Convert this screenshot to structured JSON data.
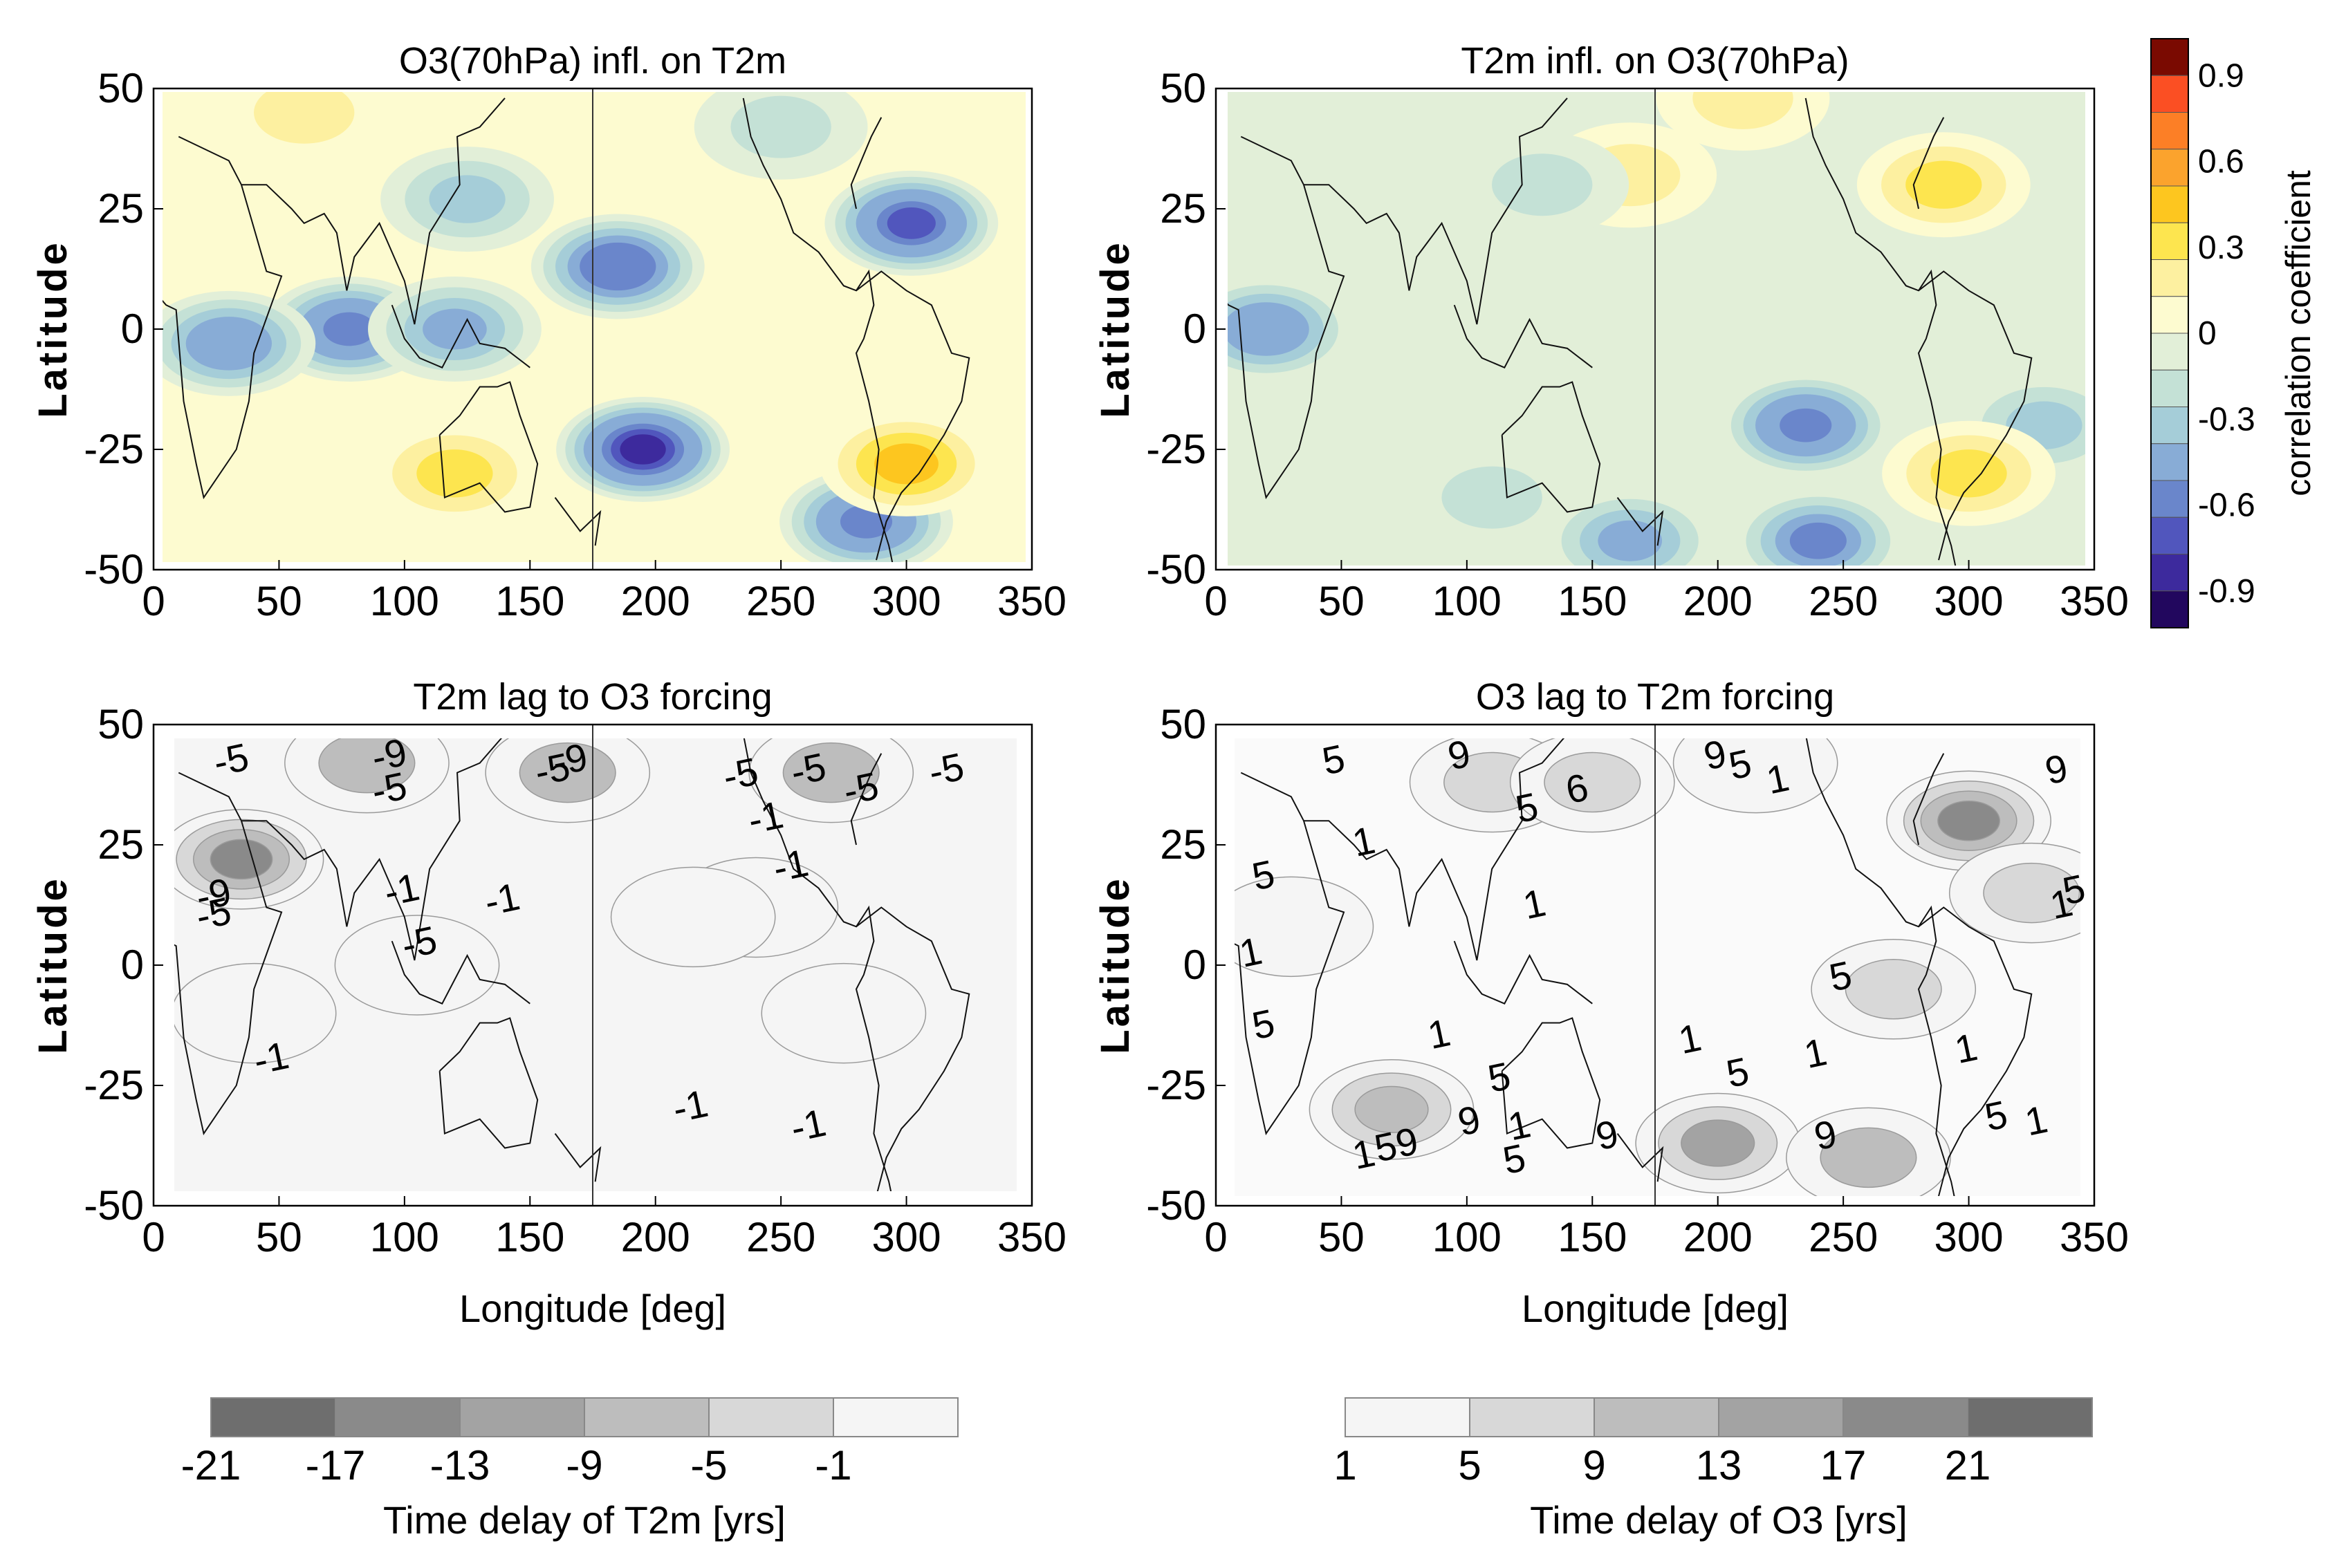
{
  "figure_kind": "four-panel lagged correlation / time-delay maps",
  "chart_data": [
    {
      "panel": "top-left",
      "type": "heatmap",
      "title": "O3(70hPa) infl. on T2m",
      "xlabel": "",
      "ylabel": "Latitude",
      "xlim": [
        0,
        350
      ],
      "ylim": [
        -50,
        50
      ],
      "xticks": [
        "0",
        "50",
        "100",
        "150",
        "200",
        "250",
        "300",
        "350"
      ],
      "yticks": [
        "50",
        "25",
        "0",
        "-25",
        "-50"
      ],
      "reference_line_lon": 175,
      "field": "correlation coefficient",
      "features": [
        {
          "lon": 195,
          "lat": -25,
          "value": -0.75
        },
        {
          "lon": 185,
          "lat": 13,
          "value": -0.6
        },
        {
          "lon": 302,
          "lat": 22,
          "value": -0.65
        },
        {
          "lon": 78,
          "lat": 0,
          "value": -0.55
        },
        {
          "lon": 30,
          "lat": -3,
          "value": -0.45
        },
        {
          "lon": 120,
          "lat": 0,
          "value": -0.4
        },
        {
          "lon": 284,
          "lat": -40,
          "value": -0.55
        },
        {
          "lon": 125,
          "lat": 27,
          "value": -0.3
        },
        {
          "lon": 120,
          "lat": -30,
          "value": 0.3
        },
        {
          "lon": 300,
          "lat": -28,
          "value": 0.4
        },
        {
          "lon": 60,
          "lat": 45,
          "value": 0.2
        },
        {
          "lon": 250,
          "lat": 42,
          "value": -0.2
        }
      ]
    },
    {
      "panel": "top-right",
      "type": "heatmap",
      "title": "T2m infl. on O3(70hPa)",
      "xlabel": "",
      "ylabel": "Latitude",
      "xlim": [
        0,
        350
      ],
      "ylim": [
        -50,
        50
      ],
      "xticks": [
        "0",
        "50",
        "100",
        "150",
        "200",
        "250",
        "300",
        "350"
      ],
      "yticks": [
        "50",
        "25",
        "0",
        "-25",
        "-50"
      ],
      "reference_line_lon": 175,
      "field": "correlation coefficient",
      "features": [
        {
          "lon": 235,
          "lat": -20,
          "value": -0.55
        },
        {
          "lon": 20,
          "lat": 0,
          "value": -0.45
        },
        {
          "lon": 240,
          "lat": -44,
          "value": -0.5
        },
        {
          "lon": 165,
          "lat": -44,
          "value": -0.4
        },
        {
          "lon": 330,
          "lat": -20,
          "value": -0.3
        },
        {
          "lon": 110,
          "lat": -35,
          "value": -0.2
        },
        {
          "lon": 300,
          "lat": -30,
          "value": 0.3
        },
        {
          "lon": 290,
          "lat": 30,
          "value": 0.25
        },
        {
          "lon": 165,
          "lat": 32,
          "value": 0.2
        },
        {
          "lon": 210,
          "lat": 48,
          "value": 0.2
        },
        {
          "lon": 130,
          "lat": 30,
          "value": -0.2
        }
      ]
    },
    {
      "panel": "bottom-left",
      "type": "heatmap",
      "title": "T2m lag to O3 forcing",
      "xlabel": "Longitude [deg]",
      "ylabel": "Latitude",
      "xlim": [
        0,
        350
      ],
      "ylim": [
        -50,
        50
      ],
      "xticks": [
        "0",
        "50",
        "100",
        "150",
        "200",
        "250",
        "300",
        "350"
      ],
      "yticks": [
        "50",
        "25",
        "0",
        "-25",
        "-50"
      ],
      "reference_line_lon": 175,
      "field": "Time delay of T2m [yrs]",
      "features": [
        {
          "lon": 35,
          "lat": 22,
          "value": -17
        },
        {
          "lon": 85,
          "lat": 42,
          "value": -9
        },
        {
          "lon": 165,
          "lat": 40,
          "value": -9
        },
        {
          "lon": 270,
          "lat": 40,
          "value": -9
        },
        {
          "lon": 240,
          "lat": 12,
          "value": -5
        },
        {
          "lon": 275,
          "lat": -10,
          "value": -5
        },
        {
          "lon": 105,
          "lat": 0,
          "value": -5
        },
        {
          "lon": 40,
          "lat": -10,
          "value": -5
        },
        {
          "lon": 215,
          "lat": 10,
          "value": -3
        }
      ],
      "contour_labels": [
        {
          "text": "-5",
          "lon": 32,
          "lat": 40
        },
        {
          "text": "-9",
          "lon": 95,
          "lat": 41
        },
        {
          "text": "-5",
          "lon": 95,
          "lat": 34
        },
        {
          "text": "-5",
          "lon": 160,
          "lat": 38
        },
        {
          "text": "-9",
          "lon": 167,
          "lat": 40
        },
        {
          "text": "-5",
          "lon": 235,
          "lat": 37
        },
        {
          "text": "-5",
          "lon": 262,
          "lat": 38
        },
        {
          "text": "-5",
          "lon": 283,
          "lat": 34
        },
        {
          "text": "-5",
          "lon": 317,
          "lat": 38
        },
        {
          "text": "-1",
          "lon": 245,
          "lat": 28
        },
        {
          "text": "-1",
          "lon": 255,
          "lat": 18
        },
        {
          "text": "-9",
          "lon": 25,
          "lat": 12
        },
        {
          "text": "-5",
          "lon": 25,
          "lat": 8
        },
        {
          "text": "-1",
          "lon": 100,
          "lat": 13
        },
        {
          "text": "-1",
          "lon": 140,
          "lat": 11
        },
        {
          "text": "-5",
          "lon": 107,
          "lat": 2
        },
        {
          "text": "-1",
          "lon": 48,
          "lat": -22
        },
        {
          "text": "-1",
          "lon": 215,
          "lat": -32
        },
        {
          "text": "-1",
          "lon": 262,
          "lat": -36
        }
      ]
    },
    {
      "panel": "bottom-right",
      "type": "heatmap",
      "title": "O3 lag to T2m forcing",
      "xlabel": "Longitude [deg]",
      "ylabel": "Latitude",
      "xlim": [
        0,
        350
      ],
      "ylim": [
        -50,
        50
      ],
      "xticks": [
        "0",
        "50",
        "100",
        "150",
        "200",
        "250",
        "300",
        "350"
      ],
      "yticks": [
        "50",
        "25",
        "0",
        "-25",
        "-50"
      ],
      "reference_line_lon": 175,
      "field": "Time delay of O3 [yrs]",
      "features": [
        {
          "lon": 300,
          "lat": 30,
          "value": 17
        },
        {
          "lon": 200,
          "lat": -37,
          "value": 13
        },
        {
          "lon": 70,
          "lat": -30,
          "value": 11
        },
        {
          "lon": 260,
          "lat": -40,
          "value": 9
        },
        {
          "lon": 110,
          "lat": 38,
          "value": 7
        },
        {
          "lon": 150,
          "lat": 38,
          "value": 8
        },
        {
          "lon": 30,
          "lat": 8,
          "value": 5
        },
        {
          "lon": 270,
          "lat": -5,
          "value": 6
        },
        {
          "lon": 325,
          "lat": 15,
          "value": 6
        },
        {
          "lon": 215,
          "lat": 42,
          "value": 5
        }
      ],
      "contour_labels": [
        {
          "text": "5",
          "lon": 48,
          "lat": 40
        },
        {
          "text": "9",
          "lon": 98,
          "lat": 41
        },
        {
          "text": "5",
          "lon": 125,
          "lat": 30
        },
        {
          "text": "6",
          "lon": 145,
          "lat": 34
        },
        {
          "text": "9",
          "lon": 200,
          "lat": 41
        },
        {
          "text": "5",
          "lon": 210,
          "lat": 39
        },
        {
          "text": "1",
          "lon": 225,
          "lat": 36
        },
        {
          "text": "9",
          "lon": 336,
          "lat": 38
        },
        {
          "text": "1",
          "lon": 60,
          "lat": 23
        },
        {
          "text": "1",
          "lon": 128,
          "lat": 10
        },
        {
          "text": "5",
          "lon": 20,
          "lat": 16
        },
        {
          "text": "1",
          "lon": 15,
          "lat": 0
        },
        {
          "text": "5",
          "lon": 20,
          "lat": -15
        },
        {
          "text": "5",
          "lon": 250,
          "lat": -5
        },
        {
          "text": "1",
          "lon": 90,
          "lat": -17
        },
        {
          "text": "5",
          "lon": 114,
          "lat": -26
        },
        {
          "text": "1",
          "lon": 190,
          "lat": -18
        },
        {
          "text": "5",
          "lon": 209,
          "lat": -25
        },
        {
          "text": "1",
          "lon": 240,
          "lat": -21
        },
        {
          "text": "1",
          "lon": 300,
          "lat": -20
        },
        {
          "text": "9",
          "lon": 102,
          "lat": -35
        },
        {
          "text": "1",
          "lon": 122,
          "lat": -36
        },
        {
          "text": "9",
          "lon": 157,
          "lat": -38
        },
        {
          "text": "5",
          "lon": 120,
          "lat": -43
        },
        {
          "text": "1",
          "lon": 60,
          "lat": -42
        },
        {
          "text": "59",
          "lon": 73,
          "lat": -40
        },
        {
          "text": "9",
          "lon": 244,
          "lat": -38
        },
        {
          "text": "5",
          "lon": 312,
          "lat": -34
        },
        {
          "text": "1",
          "lon": 328,
          "lat": -35
        },
        {
          "text": "1",
          "lon": 338,
          "lat": 10
        },
        {
          "text": "5",
          "lon": 343,
          "lat": 13
        }
      ]
    }
  ],
  "colorbar_correlation": {
    "label": "correlation coefficient",
    "ticks": [
      "0.9",
      "0.6",
      "0.3",
      "0",
      "-0.3",
      "-0.6",
      "-0.9"
    ],
    "colors": [
      "#7a0a01",
      "#fb4f23",
      "#fc7f26",
      "#fba32d",
      "#fdc61f",
      "#fde54f",
      "#fdf0a0",
      "#fdfbd0",
      "#e2efd8",
      "#c4e1d6",
      "#a5cdd8",
      "#88acd6",
      "#6a86cb",
      "#5156bd",
      "#3d2a9d",
      "#22075e"
    ]
  },
  "colorbar_t2m_delay": {
    "label": "Time delay of T2m [yrs]",
    "ticks": [
      "-21",
      "-17",
      "-13",
      "-9",
      "-5",
      "-1"
    ],
    "colors": [
      "#6e6e6e",
      "#8a8a8a",
      "#a3a3a3",
      "#bdbdbd",
      "#d8d8d8",
      "#f5f5f5"
    ]
  },
  "colorbar_o3_delay": {
    "label": "Time delay of O3 [yrs]",
    "ticks": [
      "1",
      "5",
      "9",
      "13",
      "17",
      "21"
    ],
    "colors": [
      "#f5f5f5",
      "#d8d8d8",
      "#bdbdbd",
      "#a3a3a3",
      "#8a8a8a",
      "#6e6e6e"
    ]
  }
}
